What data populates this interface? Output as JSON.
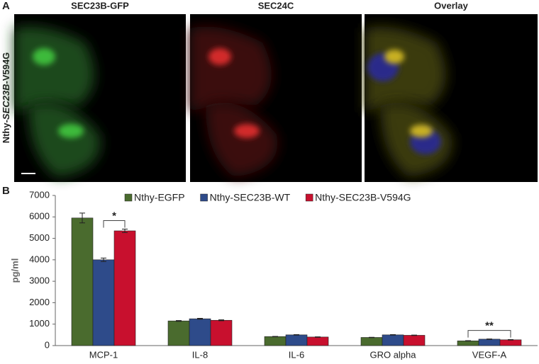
{
  "panel_a": {
    "label": "A",
    "titles": [
      "SEC23B-GFP",
      "SEC24C",
      "Overlay"
    ],
    "side_label": [
      "Nthy-",
      "SEC23B",
      "-V594G"
    ]
  },
  "panel_b": {
    "label": "B"
  },
  "chart_data": {
    "type": "bar",
    "ylabel": "pg/ml",
    "categories": [
      "MCP-1",
      "IL-8",
      "IL-6",
      "GRO alpha",
      "VEGF-A"
    ],
    "series": [
      {
        "name": "Nthy-EGFP",
        "color": "#4a6b2e",
        "values": [
          5950,
          1150,
          420,
          380,
          220
        ],
        "errors": [
          230,
          20,
          10,
          10,
          10
        ]
      },
      {
        "name": "Nthy-SEC23B-WT",
        "color": "#2e4b8a",
        "values": [
          4000,
          1250,
          500,
          500,
          300
        ],
        "errors": [
          80,
          20,
          10,
          10,
          10
        ]
      },
      {
        "name": "Nthy-SEC23B-V594G",
        "color": "#c8102e",
        "values": [
          5350,
          1180,
          400,
          480,
          270
        ],
        "errors": [
          80,
          20,
          10,
          10,
          10
        ]
      }
    ],
    "ylim": [
      0,
      7000
    ],
    "yticks": [
      0,
      1000,
      2000,
      3000,
      4000,
      5000,
      6000,
      7000
    ],
    "grid": false,
    "annotations": [
      {
        "label": "*",
        "category": "MCP-1"
      },
      {
        "label": "**",
        "category": "VEGF-A"
      }
    ]
  }
}
